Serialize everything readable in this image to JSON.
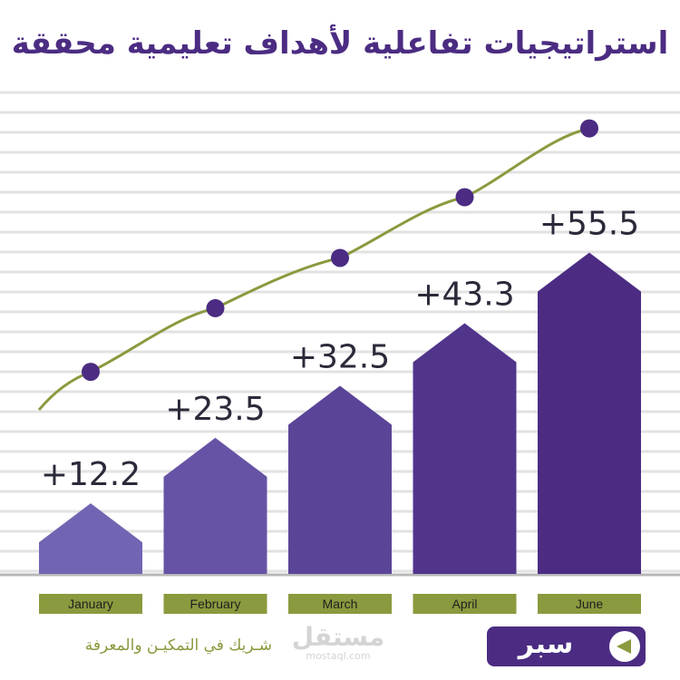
{
  "title": "استراتيجيات تفاعلية لأهداف تعليمية محققة",
  "chart_data": {
    "type": "bar",
    "categories": [
      "January",
      "February",
      "March",
      "April",
      "June"
    ],
    "values": [
      12.2,
      23.5,
      32.5,
      43.3,
      55.5
    ],
    "value_labels": [
      "+12.2",
      "+23.5",
      "+32.5",
      "+43.3",
      "+55.5"
    ],
    "ylim": [
      0,
      60
    ],
    "grid": true,
    "bar_colors": [
      "#7165b3",
      "#6653a5",
      "#5a4497",
      "#50358b",
      "#4b2c82"
    ],
    "trend_line_color": "#8a9a3e",
    "trend_marker_color": "#4b2c82",
    "category_label_bg": "#8a9a3e"
  },
  "footer": {
    "tagline": "شـريك في التمكيـن والمعرفة",
    "watermark_ar": "مستقل",
    "watermark_en": "mostaql.com",
    "brand_name": "سبر",
    "brand_icon": "play-left-icon"
  }
}
